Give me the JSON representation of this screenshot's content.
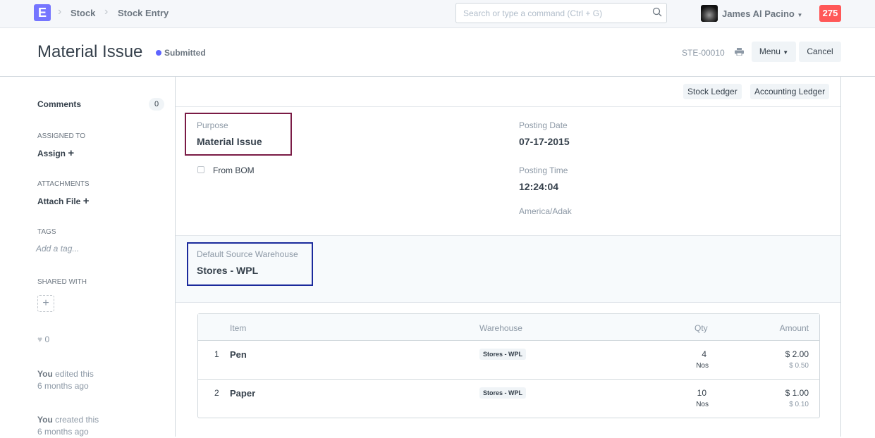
{
  "nav": {
    "logo": "E",
    "crumbs": [
      "Stock",
      "Stock Entry"
    ],
    "search_placeholder": "Search or type a command (Ctrl + G)",
    "user": "James Al Pacino",
    "notifications": "275"
  },
  "header": {
    "title": "Material Issue",
    "status": "Submitted",
    "status_color": "#5e64ff",
    "doc_name": "STE-00010",
    "menu": "Menu",
    "cancel": "Cancel"
  },
  "sidebar": {
    "comments": "Comments",
    "comment_count": "0",
    "assigned_to": "Assigned To",
    "assign": "Assign",
    "attachments": "Attachments",
    "attach_file": "Attach File",
    "tags": "Tags",
    "add_tag": "Add a tag...",
    "shared_with": "Shared With",
    "likes": "0",
    "activity": [
      {
        "who": "You",
        "what": " edited this",
        "when": "6 months ago"
      },
      {
        "who": "You",
        "what": " created this",
        "when": "6 months ago"
      }
    ]
  },
  "toolbar": {
    "stock_ledger": "Stock Ledger",
    "accounting_ledger": "Accounting Ledger"
  },
  "form": {
    "purpose_label": "Purpose",
    "purpose": "Material Issue",
    "from_bom": "From BOM",
    "posting_date_label": "Posting Date",
    "posting_date": "07-17-2015",
    "posting_time_label": "Posting Time",
    "posting_time": "12:24:04",
    "timezone": "America/Adak",
    "source_wh_label": "Default Source Warehouse",
    "source_wh": "Stores - WPL",
    "purpose_box_color": "#7a1b45",
    "warehouse_box_color": "#1b2a9c"
  },
  "items": {
    "headers": [
      "Item",
      "Warehouse",
      "Qty",
      "Amount"
    ],
    "rows": [
      {
        "idx": "1",
        "item": "Pen",
        "warehouse": "Stores - WPL",
        "qty": "4",
        "uom": "Nos",
        "amount": "$ 2.00",
        "rate": "$ 0.50"
      },
      {
        "idx": "2",
        "item": "Paper",
        "warehouse": "Stores - WPL",
        "qty": "10",
        "uom": "Nos",
        "amount": "$ 1.00",
        "rate": "$ 0.10"
      }
    ]
  }
}
